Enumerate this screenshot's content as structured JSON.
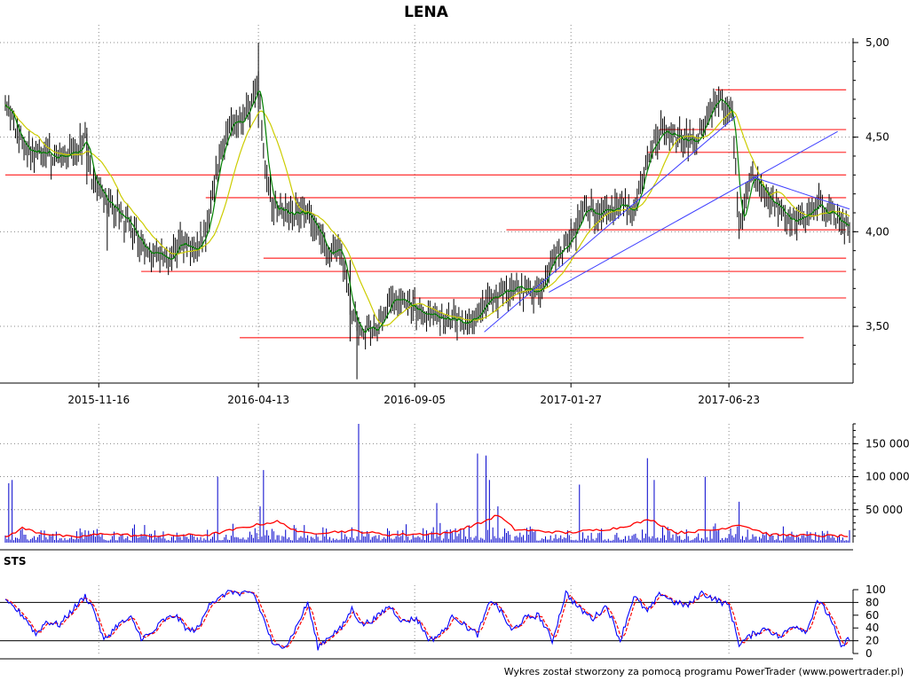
{
  "chart_data": [
    {
      "type": "candlestick",
      "title": "LENA",
      "ylim": [
        3.2,
        5.0
      ],
      "yticks": [
        "5,00",
        "4,50",
        "4,00",
        "3,50"
      ],
      "ytick_values": [
        5.0,
        4.5,
        4.0,
        3.5
      ],
      "xticks": [
        "2015-11-16",
        "2016-04-13",
        "2016-09-05",
        "2017-01-27",
        "2017-06-23"
      ],
      "grid": true,
      "colors": {
        "bars": "#000000",
        "ma_short": "#008000",
        "ma_long": "#cccc00",
        "levels": "#ff4040",
        "trendlines": "#4040ff"
      },
      "price_path": [
        {
          "d": 0,
          "p": 4.7
        },
        {
          "d": 5,
          "p": 4.55
        },
        {
          "d": 12,
          "p": 4.45
        },
        {
          "d": 22,
          "p": 4.4
        },
        {
          "d": 35,
          "p": 4.4
        },
        {
          "d": 42,
          "p": 4.42
        },
        {
          "d": 47,
          "p": 4.5
        },
        {
          "d": 50,
          "p": 4.3
        },
        {
          "d": 58,
          "p": 4.18
        },
        {
          "d": 72,
          "p": 4.05
        },
        {
          "d": 82,
          "p": 3.9
        },
        {
          "d": 95,
          "p": 3.85
        },
        {
          "d": 105,
          "p": 3.95
        },
        {
          "d": 112,
          "p": 3.9
        },
        {
          "d": 118,
          "p": 4.0
        },
        {
          "d": 125,
          "p": 4.35
        },
        {
          "d": 132,
          "p": 4.55
        },
        {
          "d": 140,
          "p": 4.6
        },
        {
          "d": 146,
          "p": 4.7
        },
        {
          "d": 149,
          "p": 4.8
        },
        {
          "d": 152,
          "p": 4.4
        },
        {
          "d": 157,
          "p": 4.15
        },
        {
          "d": 168,
          "p": 4.1
        },
        {
          "d": 178,
          "p": 4.1
        },
        {
          "d": 190,
          "p": 3.9
        },
        {
          "d": 198,
          "p": 3.9
        },
        {
          "d": 203,
          "p": 3.6
        },
        {
          "d": 207,
          "p": 3.5
        },
        {
          "d": 220,
          "p": 3.5
        },
        {
          "d": 228,
          "p": 3.65
        },
        {
          "d": 240,
          "p": 3.6
        },
        {
          "d": 255,
          "p": 3.55
        },
        {
          "d": 270,
          "p": 3.52
        },
        {
          "d": 278,
          "p": 3.55
        },
        {
          "d": 285,
          "p": 3.65
        },
        {
          "d": 300,
          "p": 3.7
        },
        {
          "d": 315,
          "p": 3.68
        },
        {
          "d": 322,
          "p": 3.88
        },
        {
          "d": 332,
          "p": 3.95
        },
        {
          "d": 342,
          "p": 4.12
        },
        {
          "d": 355,
          "p": 4.1
        },
        {
          "d": 365,
          "p": 4.15
        },
        {
          "d": 370,
          "p": 4.1
        },
        {
          "d": 378,
          "p": 4.4
        },
        {
          "d": 385,
          "p": 4.52
        },
        {
          "d": 398,
          "p": 4.5
        },
        {
          "d": 408,
          "p": 4.48
        },
        {
          "d": 418,
          "p": 4.72
        },
        {
          "d": 425,
          "p": 4.65
        },
        {
          "d": 428,
          "p": 4.6
        },
        {
          "d": 432,
          "p": 4.0
        },
        {
          "d": 440,
          "p": 4.3
        },
        {
          "d": 446,
          "p": 4.2
        },
        {
          "d": 460,
          "p": 4.1
        },
        {
          "d": 468,
          "p": 4.05
        },
        {
          "d": 478,
          "p": 4.15
        },
        {
          "d": 488,
          "p": 4.08
        },
        {
          "d": 495,
          "p": 4.03
        }
      ],
      "level_lines": [
        {
          "y": 4.75,
          "from": 418,
          "to": 495
        },
        {
          "y": 4.54,
          "from": 385,
          "to": 495
        },
        {
          "y": 4.42,
          "from": 378,
          "to": 495
        },
        {
          "y": 4.3,
          "from": 0,
          "to": 495
        },
        {
          "y": 4.18,
          "from": 118,
          "to": 495
        },
        {
          "y": 4.01,
          "from": 295,
          "to": 495
        },
        {
          "y": 3.86,
          "from": 152,
          "to": 495
        },
        {
          "y": 3.79,
          "from": 80,
          "to": 495
        },
        {
          "y": 3.65,
          "from": 240,
          "to": 495
        },
        {
          "y": 3.44,
          "from": 138,
          "to": 470
        }
      ],
      "trend_lines": [
        {
          "x1": 282,
          "y1": 3.47,
          "x2": 430,
          "y2": 4.61
        },
        {
          "x1": 320,
          "y1": 3.68,
          "x2": 490,
          "y2": 4.53
        },
        {
          "x1": 440,
          "y1": 4.29,
          "x2": 497,
          "y2": 4.12
        }
      ]
    },
    {
      "type": "bar",
      "name": "volume",
      "ylim": [
        0,
        180000
      ],
      "yticks": [
        "150 000",
        "100 000",
        "50 000"
      ],
      "ytick_values": [
        150000,
        100000,
        50000
      ],
      "colors": {
        "bars": "#0000cc",
        "avg": "#ff0000"
      },
      "spikes": [
        {
          "d": 2,
          "v": 90000
        },
        {
          "d": 4,
          "v": 95000
        },
        {
          "d": 125,
          "v": 100000
        },
        {
          "d": 152,
          "v": 110000
        },
        {
          "d": 150,
          "v": 55000
        },
        {
          "d": 208,
          "v": 180000
        },
        {
          "d": 254,
          "v": 60000
        },
        {
          "d": 278,
          "v": 135000
        },
        {
          "d": 283,
          "v": 132000
        },
        {
          "d": 285,
          "v": 95000
        },
        {
          "d": 290,
          "v": 55000
        },
        {
          "d": 338,
          "v": 88000
        },
        {
          "d": 378,
          "v": 128000
        },
        {
          "d": 382,
          "v": 95000
        },
        {
          "d": 412,
          "v": 100000
        },
        {
          "d": 432,
          "v": 62000
        }
      ],
      "avg_path": [
        {
          "d": 0,
          "v": 8000
        },
        {
          "d": 10,
          "v": 22000
        },
        {
          "d": 20,
          "v": 15000
        },
        {
          "d": 40,
          "v": 8000
        },
        {
          "d": 60,
          "v": 14000
        },
        {
          "d": 80,
          "v": 10000
        },
        {
          "d": 120,
          "v": 12000
        },
        {
          "d": 150,
          "v": 28000
        },
        {
          "d": 160,
          "v": 32000
        },
        {
          "d": 175,
          "v": 14000
        },
        {
          "d": 205,
          "v": 18000
        },
        {
          "d": 225,
          "v": 12000
        },
        {
          "d": 260,
          "v": 14000
        },
        {
          "d": 280,
          "v": 30000
        },
        {
          "d": 290,
          "v": 42000
        },
        {
          "d": 300,
          "v": 20000
        },
        {
          "d": 330,
          "v": 15000
        },
        {
          "d": 360,
          "v": 22000
        },
        {
          "d": 380,
          "v": 35000
        },
        {
          "d": 395,
          "v": 15000
        },
        {
          "d": 420,
          "v": 20000
        },
        {
          "d": 432,
          "v": 28000
        },
        {
          "d": 450,
          "v": 12000
        },
        {
          "d": 495,
          "v": 10000
        }
      ]
    },
    {
      "type": "line",
      "title": "STS",
      "ylim": [
        0,
        100
      ],
      "yticks": [
        "100",
        "80",
        "60",
        "40",
        "20",
        "0"
      ],
      "ytick_values": [
        100,
        80,
        60,
        40,
        20,
        0
      ],
      "reference_levels": [
        80,
        20
      ],
      "colors": {
        "k": "#0000ff",
        "d": "#ff0000",
        "reference": "#000000"
      },
      "k_path": [
        {
          "d": 0,
          "v": 80
        },
        {
          "d": 6,
          "v": 70
        },
        {
          "d": 12,
          "v": 55
        },
        {
          "d": 18,
          "v": 30
        },
        {
          "d": 24,
          "v": 50
        },
        {
          "d": 32,
          "v": 45
        },
        {
          "d": 40,
          "v": 70
        },
        {
          "d": 47,
          "v": 90
        },
        {
          "d": 52,
          "v": 70
        },
        {
          "d": 58,
          "v": 20
        },
        {
          "d": 66,
          "v": 45
        },
        {
          "d": 74,
          "v": 55
        },
        {
          "d": 80,
          "v": 25
        },
        {
          "d": 86,
          "v": 30
        },
        {
          "d": 92,
          "v": 50
        },
        {
          "d": 100,
          "v": 60
        },
        {
          "d": 108,
          "v": 35
        },
        {
          "d": 114,
          "v": 40
        },
        {
          "d": 120,
          "v": 80
        },
        {
          "d": 126,
          "v": 85
        },
        {
          "d": 132,
          "v": 100
        },
        {
          "d": 138,
          "v": 92
        },
        {
          "d": 146,
          "v": 95
        },
        {
          "d": 152,
          "v": 55
        },
        {
          "d": 158,
          "v": 10
        },
        {
          "d": 166,
          "v": 15
        },
        {
          "d": 172,
          "v": 45
        },
        {
          "d": 178,
          "v": 80
        },
        {
          "d": 184,
          "v": 10
        },
        {
          "d": 192,
          "v": 30
        },
        {
          "d": 198,
          "v": 40
        },
        {
          "d": 204,
          "v": 70
        },
        {
          "d": 210,
          "v": 45
        },
        {
          "d": 218,
          "v": 55
        },
        {
          "d": 226,
          "v": 75
        },
        {
          "d": 234,
          "v": 50
        },
        {
          "d": 242,
          "v": 55
        },
        {
          "d": 250,
          "v": 20
        },
        {
          "d": 258,
          "v": 35
        },
        {
          "d": 264,
          "v": 60
        },
        {
          "d": 270,
          "v": 45
        },
        {
          "d": 278,
          "v": 30
        },
        {
          "d": 286,
          "v": 85
        },
        {
          "d": 292,
          "v": 65
        },
        {
          "d": 298,
          "v": 35
        },
        {
          "d": 306,
          "v": 55
        },
        {
          "d": 314,
          "v": 60
        },
        {
          "d": 322,
          "v": 20
        },
        {
          "d": 330,
          "v": 95
        },
        {
          "d": 338,
          "v": 70
        },
        {
          "d": 346,
          "v": 55
        },
        {
          "d": 354,
          "v": 75
        },
        {
          "d": 362,
          "v": 20
        },
        {
          "d": 370,
          "v": 90
        },
        {
          "d": 378,
          "v": 65
        },
        {
          "d": 386,
          "v": 95
        },
        {
          "d": 394,
          "v": 80
        },
        {
          "d": 402,
          "v": 75
        },
        {
          "d": 410,
          "v": 95
        },
        {
          "d": 418,
          "v": 85
        },
        {
          "d": 426,
          "v": 75
        },
        {
          "d": 432,
          "v": 15
        },
        {
          "d": 440,
          "v": 30
        },
        {
          "d": 448,
          "v": 40
        },
        {
          "d": 456,
          "v": 25
        },
        {
          "d": 464,
          "v": 45
        },
        {
          "d": 472,
          "v": 35
        },
        {
          "d": 478,
          "v": 85
        },
        {
          "d": 486,
          "v": 55
        },
        {
          "d": 492,
          "v": 8
        },
        {
          "d": 497,
          "v": 25
        }
      ]
    }
  ],
  "footer": "Wykres został stworzony za pomocą programu PowerTrader (www.powertrader.pl)"
}
